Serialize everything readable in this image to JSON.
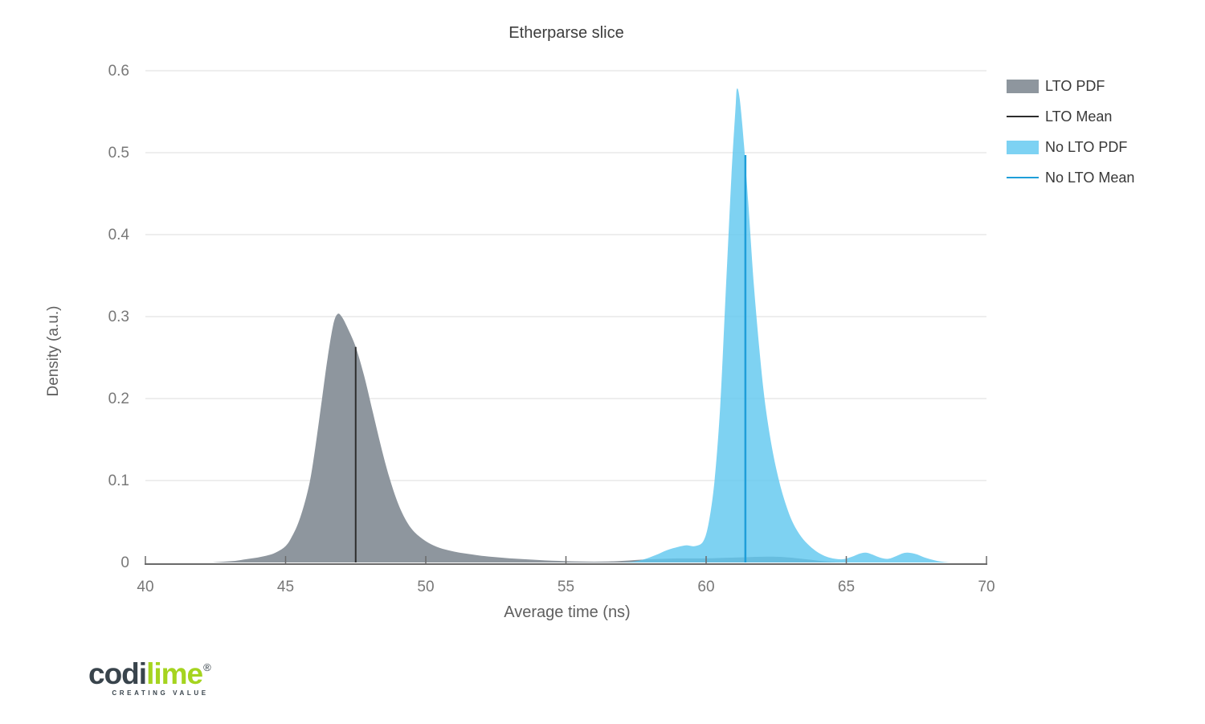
{
  "chart_data": {
    "type": "area",
    "title": "Etherparse slice",
    "xlabel": "Average time (ns)",
    "ylabel": "Density (a.u.)",
    "xlim": [
      40,
      70
    ],
    "ylim": [
      0,
      0.6
    ],
    "xticks": [
      40,
      45,
      50,
      55,
      60,
      65,
      70
    ],
    "xtick_labels": [
      "40",
      "45",
      "50",
      "55",
      "60",
      "65",
      "70"
    ],
    "yticks": [
      0,
      0.1,
      0.2,
      0.3,
      0.4,
      0.5,
      0.6
    ],
    "ytick_labels": [
      "0",
      "0.1",
      "0.2",
      "0.3",
      "0.4",
      "0.5",
      "0.6"
    ],
    "grid": true,
    "legend_position": "right",
    "axis_colors": {
      "grid": "#e3e3e3",
      "axis_line": "#6a6a6a",
      "tick_text": "#787878",
      "axis_title": "#5f5f5f"
    },
    "series": [
      {
        "name": "LTO PDF",
        "kind": "density-area",
        "color": "#8e969e",
        "opacity": 1,
        "mean": 47.5,
        "peak_x": 46.85,
        "peak_y": 0.303,
        "points": [
          [
            42.4,
            0
          ],
          [
            42.8,
            0.001
          ],
          [
            43.2,
            0.002
          ],
          [
            43.6,
            0.004
          ],
          [
            44.0,
            0.006
          ],
          [
            44.4,
            0.009
          ],
          [
            44.7,
            0.013
          ],
          [
            45.0,
            0.02
          ],
          [
            45.2,
            0.03
          ],
          [
            45.45,
            0.048
          ],
          [
            45.7,
            0.075
          ],
          [
            45.9,
            0.105
          ],
          [
            46.1,
            0.15
          ],
          [
            46.3,
            0.2
          ],
          [
            46.5,
            0.25
          ],
          [
            46.7,
            0.29
          ],
          [
            46.85,
            0.303
          ],
          [
            47.0,
            0.3
          ],
          [
            47.2,
            0.287
          ],
          [
            47.5,
            0.263
          ],
          [
            47.8,
            0.228
          ],
          [
            48.1,
            0.185
          ],
          [
            48.4,
            0.142
          ],
          [
            48.7,
            0.104
          ],
          [
            49.0,
            0.073
          ],
          [
            49.3,
            0.051
          ],
          [
            49.6,
            0.037
          ],
          [
            50.0,
            0.026
          ],
          [
            50.4,
            0.019
          ],
          [
            50.8,
            0.015
          ],
          [
            51.2,
            0.012
          ],
          [
            51.6,
            0.01
          ],
          [
            52.0,
            0.008
          ],
          [
            52.5,
            0.0065
          ],
          [
            53.0,
            0.005
          ],
          [
            53.5,
            0.004
          ],
          [
            54.0,
            0.003
          ],
          [
            54.5,
            0.0022
          ],
          [
            55.0,
            0.0016
          ],
          [
            55.5,
            0.0012
          ],
          [
            56.0,
            0.001
          ],
          [
            56.5,
            0.0012
          ],
          [
            57.0,
            0.002
          ],
          [
            57.5,
            0.003
          ],
          [
            58.0,
            0.004
          ],
          [
            58.5,
            0.0045
          ],
          [
            59.0,
            0.005
          ],
          [
            59.5,
            0.005
          ],
          [
            60.0,
            0.005
          ],
          [
            60.5,
            0.0055
          ],
          [
            61.0,
            0.006
          ],
          [
            61.5,
            0.0065
          ],
          [
            62.0,
            0.007
          ],
          [
            62.5,
            0.007
          ],
          [
            63.0,
            0.006
          ],
          [
            63.4,
            0.0045
          ],
          [
            63.8,
            0.003
          ],
          [
            64.2,
            0.0015
          ],
          [
            64.6,
            0.0005
          ],
          [
            65.0,
            0
          ]
        ]
      },
      {
        "name": "LTO Mean",
        "kind": "vline",
        "color": "#2d2d2d",
        "width": 2,
        "x": 47.5,
        "top": 0.263
      },
      {
        "name": "No LTO PDF",
        "kind": "density-area",
        "color": "#5ec7ef",
        "opacity": 0.8,
        "mean": 61.4,
        "peak_x": 61.1,
        "peak_y": 0.578,
        "points": [
          [
            57.0,
            0
          ],
          [
            57.4,
            0.001
          ],
          [
            57.8,
            0.004
          ],
          [
            58.2,
            0.009
          ],
          [
            58.6,
            0.015
          ],
          [
            59.0,
            0.019
          ],
          [
            59.3,
            0.021
          ],
          [
            59.6,
            0.02
          ],
          [
            59.9,
            0.026
          ],
          [
            60.1,
            0.05
          ],
          [
            60.3,
            0.1
          ],
          [
            60.5,
            0.19
          ],
          [
            60.7,
            0.33
          ],
          [
            60.9,
            0.47
          ],
          [
            61.05,
            0.555
          ],
          [
            61.1,
            0.578
          ],
          [
            61.2,
            0.565
          ],
          [
            61.35,
            0.51
          ],
          [
            61.5,
            0.44
          ],
          [
            61.7,
            0.34
          ],
          [
            61.9,
            0.26
          ],
          [
            62.1,
            0.195
          ],
          [
            62.35,
            0.14
          ],
          [
            62.6,
            0.1
          ],
          [
            62.85,
            0.07
          ],
          [
            63.1,
            0.048
          ],
          [
            63.4,
            0.031
          ],
          [
            63.7,
            0.02
          ],
          [
            64.0,
            0.012
          ],
          [
            64.3,
            0.007
          ],
          [
            64.6,
            0.0045
          ],
          [
            64.9,
            0.004
          ],
          [
            65.2,
            0.007
          ],
          [
            65.5,
            0.011
          ],
          [
            65.7,
            0.012
          ],
          [
            65.9,
            0.01
          ],
          [
            66.2,
            0.006
          ],
          [
            66.5,
            0.0045
          ],
          [
            66.8,
            0.008
          ],
          [
            67.0,
            0.011
          ],
          [
            67.2,
            0.012
          ],
          [
            67.5,
            0.01
          ],
          [
            67.8,
            0.006
          ],
          [
            68.1,
            0.003
          ],
          [
            68.4,
            0.001
          ],
          [
            68.7,
            0
          ]
        ]
      },
      {
        "name": "No LTO Mean",
        "kind": "vline",
        "color": "#1f9ed9",
        "width": 2.5,
        "x": 61.4,
        "top": 0.497
      }
    ],
    "legend": [
      {
        "label": "LTO PDF",
        "swatch": "area",
        "color": "#8e969e"
      },
      {
        "label": "LTO Mean",
        "swatch": "line",
        "color": "#2d2d2d"
      },
      {
        "label": "No LTO PDF",
        "swatch": "area",
        "color": "#7dd2f3"
      },
      {
        "label": "No LTO Mean",
        "swatch": "line",
        "color": "#1f9ed9"
      }
    ]
  },
  "logo": {
    "word_dark": "codi",
    "word_accent": "lime",
    "registered": "®",
    "tagline": "CREATING VALUE",
    "dark_color": "#39444c",
    "accent_color": "#a5d41f"
  }
}
